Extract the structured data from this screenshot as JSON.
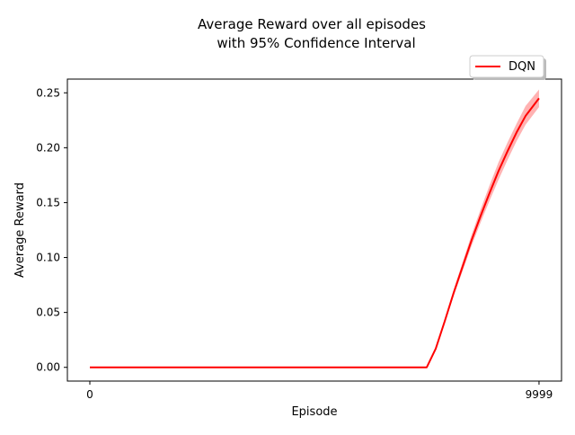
{
  "chart_data": {
    "type": "line",
    "title_lines": [
      "Average Reward over all episodes",
      "with 95% Confidence Interval"
    ],
    "xlabel": "Episode",
    "ylabel": "Average Reward",
    "xlim": [
      -500,
      10500
    ],
    "ylim": [
      -0.0125,
      0.2625
    ],
    "xticks": [
      0,
      9999
    ],
    "xtick_labels": [
      "0",
      "9999"
    ],
    "yticks": [
      0.0,
      0.05,
      0.1,
      0.15,
      0.2,
      0.25
    ],
    "ytick_labels": [
      "0.00",
      "0.05",
      "0.10",
      "0.15",
      "0.20",
      "0.25"
    ],
    "grid": false,
    "legend": {
      "placement": "upper-right-outside",
      "entries": [
        "DQN"
      ]
    },
    "series": [
      {
        "name": "DQN",
        "color": "#ff0000",
        "band_color": "#ff0000",
        "x": [
          0,
          1000,
          2000,
          3000,
          4000,
          5000,
          6000,
          7200,
          7500,
          7700,
          7900,
          8100,
          8300,
          8500,
          8700,
          8900,
          9100,
          9300,
          9500,
          9700,
          9999
        ],
        "y": [
          0.0,
          0.0,
          0.0,
          0.0,
          0.0,
          0.0,
          0.0,
          0.0,
          0.0,
          0.017,
          0.042,
          0.068,
          0.092,
          0.116,
          0.138,
          0.159,
          0.179,
          0.197,
          0.214,
          0.229,
          0.245
        ],
        "ci_low": [
          0.0,
          0.0,
          0.0,
          0.0,
          0.0,
          0.0,
          0.0,
          0.0,
          0.0,
          0.016,
          0.04,
          0.065,
          0.088,
          0.111,
          0.132,
          0.152,
          0.171,
          0.189,
          0.206,
          0.221,
          0.237
        ],
        "ci_high": [
          0.0,
          0.0,
          0.0,
          0.0,
          0.0,
          0.0,
          0.0,
          0.0,
          0.0,
          0.018,
          0.044,
          0.071,
          0.096,
          0.121,
          0.144,
          0.166,
          0.187,
          0.205,
          0.222,
          0.238,
          0.253
        ]
      }
    ]
  }
}
